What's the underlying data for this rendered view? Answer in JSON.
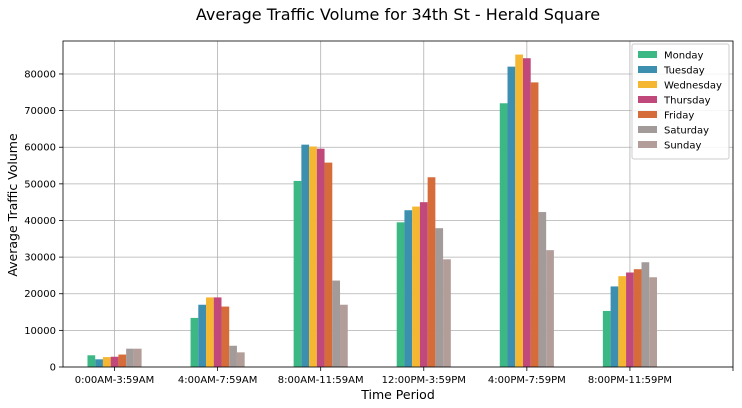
{
  "chart_data": {
    "type": "bar",
    "title": "Average Traffic Volume for 34th St - Herald Square",
    "xlabel": "Time Period",
    "ylabel": "Average Traffic Volume",
    "categories": [
      "0:00AM-3:59AM",
      "4:00AM-7:59AM",
      "8:00AM-11:59AM",
      "12:00PM-3:59PM",
      "4:00PM-7:59PM",
      "8:00PM-11:59PM"
    ],
    "ylim": [
      0,
      89000
    ],
    "yticks": [
      0,
      10000,
      20000,
      30000,
      40000,
      50000,
      60000,
      70000,
      80000
    ],
    "grid": true,
    "legend_position": "top-right",
    "series": [
      {
        "name": "Monday",
        "color": "#3cb884",
        "values": [
          3200,
          13400,
          50800,
          39500,
          72000,
          15300
        ]
      },
      {
        "name": "Tuesday",
        "color": "#3d8fb0",
        "values": [
          2100,
          17000,
          60700,
          42800,
          82000,
          22000
        ]
      },
      {
        "name": "Wednesday",
        "color": "#f5b731",
        "values": [
          2700,
          19000,
          60200,
          43800,
          85300,
          24800
        ]
      },
      {
        "name": "Thursday",
        "color": "#c1487a",
        "values": [
          2800,
          19000,
          59600,
          45000,
          84300,
          25800
        ]
      },
      {
        "name": "Friday",
        "color": "#d56c3a",
        "values": [
          3400,
          16500,
          55800,
          51800,
          77700,
          26700
        ]
      },
      {
        "name": "Saturday",
        "color": "#a39a9a",
        "values": [
          5000,
          5800,
          23600,
          37900,
          42300,
          28600
        ]
      },
      {
        "name": "Sunday",
        "color": "#b29d98",
        "values": [
          5000,
          4000,
          17000,
          29400,
          31900,
          24500
        ]
      }
    ]
  }
}
